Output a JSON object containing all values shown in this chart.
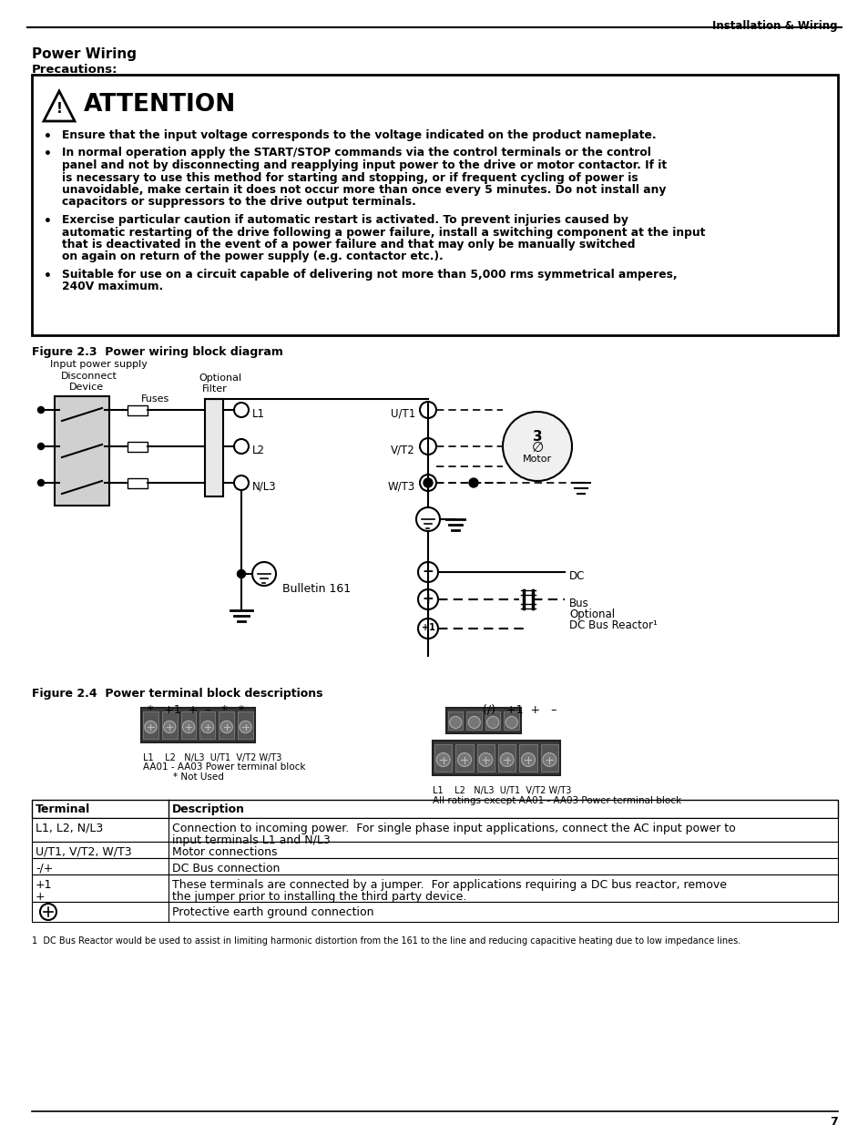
{
  "page_header_right": "Installation & Wiring",
  "section_title": "Power Wiring",
  "precautions_label": "Precautions:",
  "attention_title": "ATTENTION",
  "bullet_points": [
    "Ensure that the input voltage corresponds to the voltage indicated on the product nameplate.",
    "In normal operation apply the START/STOP commands via the control terminals or the control\npanel and not by disconnecting and reapplying input power to the drive or motor contactor. If it\nis necessary to use this method for starting and stopping, or if frequent cycling of power is\nunavoidable, make certain it does not occur more than once every 5 minutes. Do not install any\ncapacitors or suppressors to the drive output terminals.",
    "Exercise particular caution if automatic restart is activated. To prevent injuries caused by\nautomatic restarting of the drive following a power failure, install a switching component at the input\nthat is deactivated in the event of a power failure and that may only be manually switched\non again on return of the power supply (e.g. contactor etc.).",
    "Suitable for use on a circuit capable of delivering not more than 5,000 rms symmetrical amperes,\n240V maximum."
  ],
  "fig23_title": "Figure 2.3  Power wiring block diagram",
  "fig24_title": "Figure 2.4  Power terminal block descriptions",
  "bulletin_label": "Bulletin 161",
  "table_headers": [
    "Terminal",
    "Description"
  ],
  "table_rows": [
    [
      "L1, L2, N/L3",
      "Connection to incoming power.  For single phase input applications, connect the AC input power to\ninput terminals L1 and N/L3"
    ],
    [
      "U/T1, V/T2, W/T3",
      "Motor connections"
    ],
    [
      "-/+",
      "DC Bus connection"
    ],
    [
      "+1\n+",
      "These terminals are connected by a jumper.  For applications requiring a DC bus reactor, remove\nthe jumper prior to installing the third party device."
    ],
    [
      "⊕",
      "Protective earth ground connection"
    ]
  ],
  "footnote": "1  DC Bus Reactor would be used to assist in limiting harmonic distortion from the 161 to the line and reducing capacitive heating due to low impedance lines.",
  "page_number": "7"
}
